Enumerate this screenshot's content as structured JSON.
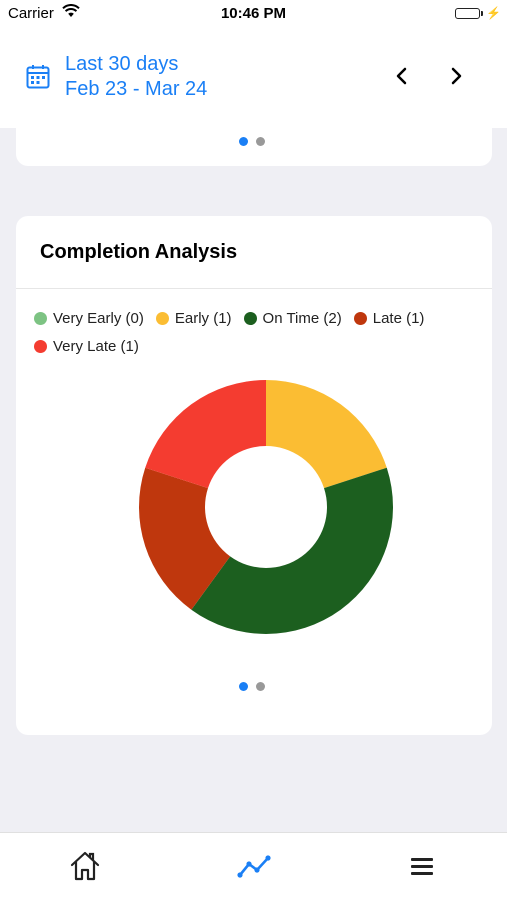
{
  "status_bar": {
    "carrier": "Carrier",
    "time": "10:46 PM",
    "battery_level": 1.0,
    "charging": true
  },
  "header": {
    "range_title": "Last 30 days",
    "range_dates": "Feb 23 - Mar 24",
    "icon": "calendar-icon",
    "prev_icon": "chevron-left-icon",
    "next_icon": "chevron-right-icon",
    "accent_color": "#1a7ff5"
  },
  "top_card": {
    "pager": {
      "count": 2,
      "active": 0
    }
  },
  "completion_card": {
    "title": "Completion Analysis",
    "pager": {
      "count": 2,
      "active": 0
    }
  },
  "chart_data": {
    "type": "pie",
    "style": "donut",
    "title": "Completion Analysis",
    "legend_position": "top",
    "categories": [
      "Very Early",
      "Early",
      "On Time",
      "Late",
      "Very Late"
    ],
    "legend_labels": [
      "Very Early (0)",
      "Early (1)",
      "On Time (2)",
      "Late (1)",
      "Very Late (1)"
    ],
    "values": [
      0,
      1,
      2,
      1,
      1
    ],
    "colors": [
      "#7dc383",
      "#fbbd33",
      "#1c5f1f",
      "#bf370d",
      "#f43c30"
    ]
  },
  "tabbar": {
    "items": [
      {
        "icon": "home-icon",
        "active": false
      },
      {
        "icon": "line-chart-icon",
        "active": true
      },
      {
        "icon": "menu-icon",
        "active": false
      }
    ]
  }
}
